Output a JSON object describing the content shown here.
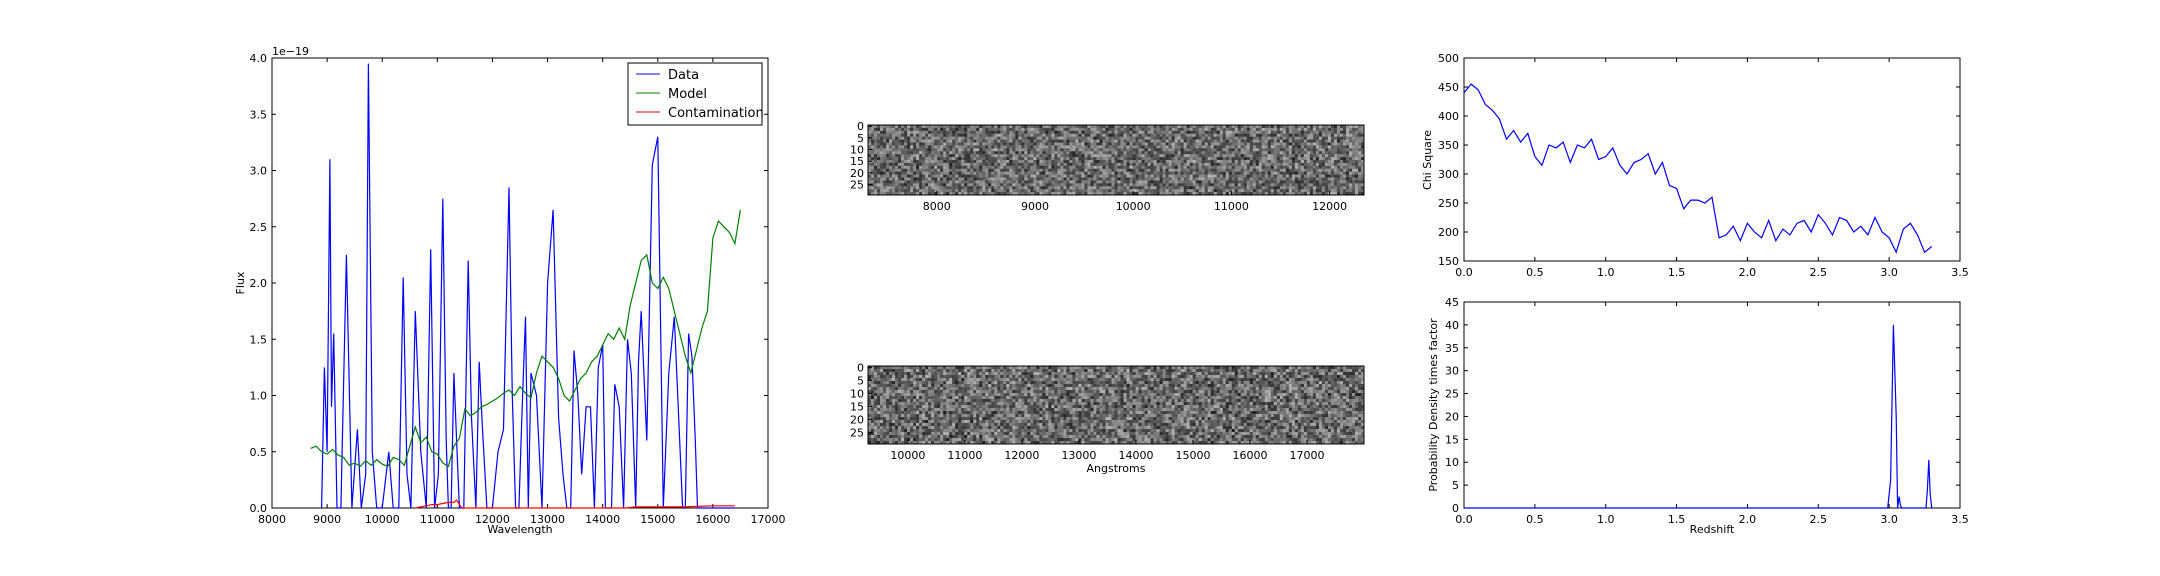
{
  "chart_data": [
    {
      "type": "line",
      "xlabel": "Wavelength",
      "ylabel": "Flux",
      "offset_text": "1e−19",
      "xlim": [
        8000,
        17000
      ],
      "ylim": [
        0,
        4.0
      ],
      "xticks": [
        8000,
        9000,
        10000,
        11000,
        12000,
        13000,
        14000,
        15000,
        16000,
        17000
      ],
      "yticks": [
        "0.0",
        "0.5",
        "1.0",
        "1.5",
        "2.0",
        "2.5",
        "3.0",
        "3.5",
        "4.0"
      ],
      "legend": {
        "placement": "top-right",
        "entries": [
          "Data",
          "Model",
          "Contamination"
        ]
      },
      "series": [
        {
          "name": "Data",
          "color": "#0000ff",
          "x": [
            8900,
            8950,
            9000,
            9050,
            9080,
            9120,
            9180,
            9250,
            9350,
            9450,
            9550,
            9620,
            9700,
            9750,
            9820,
            9900,
            9960,
            10000,
            10060,
            10120,
            10200,
            10300,
            10380,
            10450,
            10520,
            10600,
            10700,
            10800,
            10880,
            10950,
            11020,
            11100,
            11160,
            11200,
            11250,
            11300,
            11350,
            11400,
            11480,
            11560,
            11620,
            11700,
            11760,
            11820,
            11900,
            12000,
            12100,
            12200,
            12300,
            12360,
            12420,
            12480,
            12540,
            12600,
            12650,
            12700,
            12800,
            12900,
            13000,
            13100,
            13200,
            13280,
            13350,
            13420,
            13480,
            13550,
            13620,
            13700,
            13780,
            13850,
            13920,
            14000,
            14050,
            14100,
            14160,
            14220,
            14300,
            14380,
            14450,
            14520,
            14600,
            14650,
            14700,
            14800,
            14900,
            15000,
            15100,
            15200,
            15300,
            15380,
            15450,
            15500,
            15560,
            15620,
            15680,
            15720,
            15780,
            15850,
            15920,
            15960,
            16000,
            16100,
            16200,
            16250,
            16300,
            16350,
            16400
          ],
          "y": [
            0,
            1.25,
            0.5,
            3.1,
            0.9,
            1.55,
            0,
            0,
            2.25,
            0,
            0.7,
            0,
            0.3,
            3.95,
            0.5,
            0,
            0,
            0,
            0.25,
            0.5,
            0,
            0,
            2.05,
            0.3,
            0,
            1.75,
            0.5,
            0,
            2.3,
            0,
            0.3,
            2.75,
            0.6,
            0,
            0,
            1.2,
            0.6,
            0,
            0,
            2.2,
            0.8,
            0,
            1.3,
            0.7,
            0,
            0,
            0.5,
            0.7,
            2.85,
            1.0,
            0,
            0,
            0.9,
            1.7,
            0,
            1.2,
            1.0,
            0,
            2.0,
            2.65,
            0.8,
            0.3,
            0,
            0,
            1.4,
            1.0,
            0.3,
            0.9,
            0.9,
            0,
            1.25,
            1.45,
            0,
            0,
            0,
            1.1,
            0.9,
            0,
            1.5,
            1.2,
            0,
            1.3,
            1.75,
            0.6,
            3.05,
            3.3,
            0,
            1.2,
            1.7,
            0.8,
            0,
            0,
            1.55,
            1.35,
            0.6,
            0,
            0,
            0,
            0,
            0,
            0,
            0,
            0,
            0,
            0,
            0,
            0
          ]
        },
        {
          "name": "Model",
          "color": "#008000",
          "x": [
            8700,
            8800,
            8900,
            9000,
            9100,
            9200,
            9300,
            9400,
            9500,
            9600,
            9700,
            9800,
            9900,
            10000,
            10100,
            10200,
            10300,
            10400,
            10500,
            10600,
            10700,
            10800,
            10900,
            11000,
            11100,
            11200,
            11300,
            11400,
            11500,
            11600,
            11700,
            11800,
            11900,
            12000,
            12100,
            12200,
            12300,
            12400,
            12500,
            12600,
            12700,
            12800,
            12900,
            13000,
            13100,
            13200,
            13300,
            13400,
            13500,
            13600,
            13700,
            13800,
            13900,
            14000,
            14100,
            14200,
            14300,
            14400,
            14500,
            14600,
            14700,
            14800,
            14900,
            15000,
            15100,
            15200,
            15300,
            15400,
            15500,
            15600,
            15700,
            15800,
            15900,
            16000,
            16100,
            16200,
            16300,
            16400,
            16500
          ],
          "y": [
            0.53,
            0.55,
            0.5,
            0.48,
            0.52,
            0.47,
            0.45,
            0.38,
            0.4,
            0.37,
            0.42,
            0.38,
            0.43,
            0.39,
            0.37,
            0.45,
            0.43,
            0.38,
            0.55,
            0.72,
            0.58,
            0.63,
            0.5,
            0.48,
            0.4,
            0.37,
            0.55,
            0.62,
            0.88,
            0.82,
            0.85,
            0.9,
            0.92,
            0.95,
            0.98,
            1.02,
            1.05,
            1.0,
            1.08,
            1.02,
            0.98,
            1.2,
            1.35,
            1.3,
            1.25,
            1.15,
            1.0,
            0.95,
            1.05,
            1.15,
            1.2,
            1.3,
            1.35,
            1.45,
            1.55,
            1.5,
            1.6,
            1.5,
            1.8,
            2.0,
            2.2,
            2.25,
            2.0,
            1.95,
            2.05,
            1.95,
            1.75,
            1.55,
            1.35,
            1.2,
            1.4,
            1.6,
            1.75,
            2.4,
            2.55,
            2.5,
            2.45,
            2.35,
            2.65
          ]
        },
        {
          "name": "Contamination",
          "color": "#ff0000",
          "x": [
            10600,
            10700,
            10800,
            10900,
            11000,
            11100,
            11200,
            11300,
            11350,
            11400,
            11450,
            14400,
            14600,
            15000,
            15500,
            16000,
            16400
          ],
          "y": [
            0,
            0.01,
            0.02,
            0.03,
            0.03,
            0.04,
            0.05,
            0.05,
            0.07,
            0.03,
            0,
            0,
            0.01,
            0.01,
            0.01,
            0.02,
            0.02
          ]
        }
      ]
    },
    {
      "type": "heatmap",
      "xticks": [
        "8000",
        "9000",
        "10000",
        "11000",
        "12000"
      ],
      "yticks": [
        "0",
        "5",
        "10",
        "15",
        "20",
        "25"
      ],
      "xlim": [
        7300,
        12350
      ],
      "rows": 30
    },
    {
      "type": "heatmap",
      "xlabel": "Angstroms",
      "xticks": [
        "10000",
        "11000",
        "12000",
        "13000",
        "14000",
        "15000",
        "16000",
        "17000"
      ],
      "yticks": [
        "0",
        "5",
        "10",
        "15",
        "20",
        "25"
      ],
      "xlim": [
        9300,
        18000
      ],
      "rows": 30
    },
    {
      "type": "line",
      "ylabel": "Chi Square",
      "xlim": [
        0,
        3.5
      ],
      "ylim": [
        150,
        500
      ],
      "xticks": [
        "0.0",
        "0.5",
        "1.0",
        "1.5",
        "2.0",
        "2.5",
        "3.0",
        "3.5"
      ],
      "yticks": [
        "150",
        "200",
        "250",
        "300",
        "350",
        "400",
        "450",
        "500"
      ],
      "series": [
        {
          "color": "#0000ff",
          "x": [
            0,
            0.05,
            0.1,
            0.15,
            0.2,
            0.25,
            0.3,
            0.35,
            0.4,
            0.45,
            0.5,
            0.55,
            0.6,
            0.65,
            0.7,
            0.75,
            0.8,
            0.85,
            0.9,
            0.95,
            1.0,
            1.05,
            1.1,
            1.15,
            1.2,
            1.25,
            1.3,
            1.35,
            1.4,
            1.45,
            1.5,
            1.55,
            1.6,
            1.65,
            1.7,
            1.75,
            1.8,
            1.85,
            1.9,
            1.95,
            2.0,
            2.05,
            2.1,
            2.15,
            2.2,
            2.25,
            2.3,
            2.35,
            2.4,
            2.45,
            2.5,
            2.55,
            2.6,
            2.65,
            2.7,
            2.75,
            2.8,
            2.85,
            2.9,
            2.95,
            3.0,
            3.05,
            3.1,
            3.15,
            3.2,
            3.25,
            3.3
          ],
          "y": [
            440,
            455,
            445,
            420,
            410,
            395,
            360,
            375,
            355,
            370,
            330,
            315,
            350,
            345,
            355,
            320,
            350,
            345,
            360,
            325,
            330,
            345,
            315,
            300,
            320,
            325,
            335,
            300,
            320,
            280,
            275,
            240,
            255,
            255,
            250,
            260,
            190,
            195,
            210,
            185,
            215,
            200,
            190,
            220,
            185,
            205,
            195,
            215,
            220,
            200,
            230,
            215,
            195,
            225,
            220,
            200,
            210,
            195,
            225,
            200,
            190,
            165,
            205,
            215,
            195,
            165,
            175
          ]
        }
      ]
    },
    {
      "type": "line",
      "xlabel": "Redshift",
      "ylabel": "Probability Density times factor",
      "xlim": [
        0,
        3.5
      ],
      "ylim": [
        0,
        45
      ],
      "xticks": [
        "0.0",
        "0.5",
        "1.0",
        "1.5",
        "2.0",
        "2.5",
        "3.0",
        "3.5"
      ],
      "yticks": [
        "0",
        "5",
        "10",
        "15",
        "20",
        "25",
        "30",
        "35",
        "40",
        "45"
      ],
      "series": [
        {
          "color": "#0000ff",
          "x": [
            0,
            2.99,
            3.01,
            3.03,
            3.05,
            3.06,
            3.07,
            3.08,
            3.09,
            3.1,
            3.25,
            3.26,
            3.27,
            3.28,
            3.29,
            3.3,
            3.31
          ],
          "y": [
            0,
            0,
            6,
            40,
            20,
            0,
            2.5,
            0.5,
            0,
            0,
            0,
            0,
            4,
            10.5,
            3,
            0,
            0
          ]
        }
      ]
    }
  ]
}
